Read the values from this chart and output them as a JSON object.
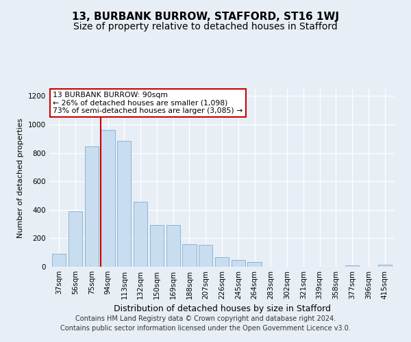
{
  "title": "13, BURBANK BURROW, STAFFORD, ST16 1WJ",
  "subtitle": "Size of property relative to detached houses in Stafford",
  "xlabel": "Distribution of detached houses by size in Stafford",
  "ylabel": "Number of detached properties",
  "categories": [
    "37sqm",
    "56sqm",
    "75sqm",
    "94sqm",
    "113sqm",
    "132sqm",
    "150sqm",
    "169sqm",
    "188sqm",
    "207sqm",
    "226sqm",
    "245sqm",
    "264sqm",
    "283sqm",
    "302sqm",
    "321sqm",
    "339sqm",
    "358sqm",
    "377sqm",
    "396sqm",
    "415sqm"
  ],
  "values": [
    90,
    390,
    845,
    960,
    885,
    455,
    295,
    295,
    160,
    155,
    65,
    50,
    35,
    0,
    0,
    0,
    0,
    0,
    10,
    0,
    15
  ],
  "bar_color": "#c9ddf0",
  "bar_edge_color": "#8ab4d8",
  "vline_x_index": 3,
  "vline_color": "#cc0000",
  "annotation_line1": "13 BURBANK BURROW: 90sqm",
  "annotation_line2": "← 26% of detached houses are smaller (1,098)",
  "annotation_line3": "73% of semi-detached houses are larger (3,085) →",
  "annotation_box_color": "white",
  "annotation_box_edge_color": "#cc0000",
  "ylim": [
    0,
    1250
  ],
  "yticks": [
    0,
    200,
    400,
    600,
    800,
    1000,
    1200
  ],
  "footer_line1": "Contains HM Land Registry data © Crown copyright and database right 2024.",
  "footer_line2": "Contains public sector information licensed under the Open Government Licence v3.0.",
  "background_color": "#e8eef5",
  "title_fontsize": 11,
  "subtitle_fontsize": 10,
  "xlabel_fontsize": 9,
  "ylabel_fontsize": 8,
  "tick_fontsize": 7.5,
  "footer_fontsize": 7
}
